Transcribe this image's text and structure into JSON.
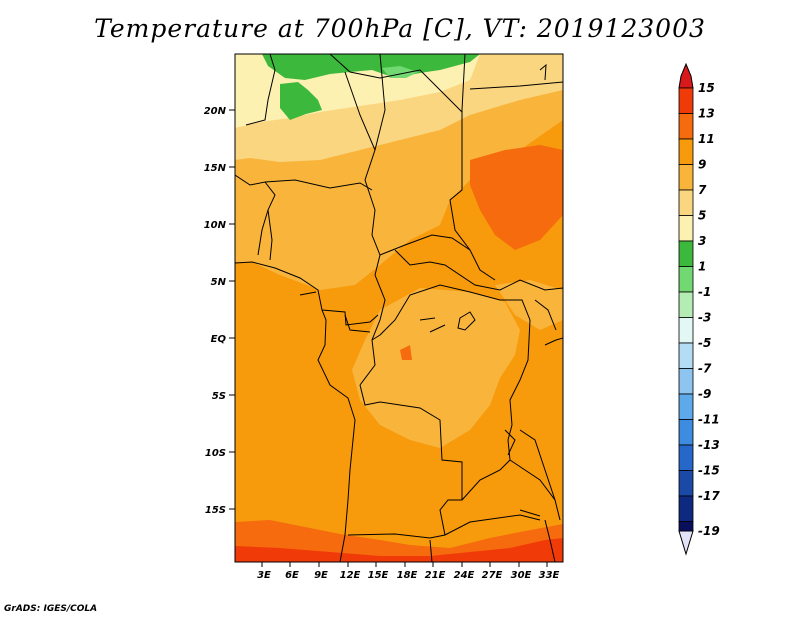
{
  "title": "Temperature at 700hPa [C], VT: 2019123003",
  "credit": "GrADS: IGES/COLA",
  "map": {
    "lat_labels": [
      "20N",
      "15N",
      "10N",
      "5N",
      "EQ",
      "5S",
      "10S",
      "15S"
    ],
    "lon_labels": [
      "3E",
      "6E",
      "9E",
      "12E",
      "15E",
      "18E",
      "21E",
      "24E",
      "27E",
      "30E",
      "33E"
    ]
  },
  "colorbar": {
    "labels": [
      "15",
      "13",
      "11",
      "9",
      "7",
      "5",
      "3",
      "1",
      "-1",
      "-3",
      "-5",
      "-7",
      "-9",
      "-11",
      "-13",
      "-15",
      "-17",
      "-19"
    ],
    "colors": {
      "above_15": "#d7191c",
      "13_15": "#f03b08",
      "11_13": "#f56b0e",
      "9_11": "#f79a0c",
      "7_9": "#f9b43c",
      "5_7": "#fbd680",
      "3_5": "#fdf1b2",
      "1_3": "#3cb93c",
      "-1_1": "#72d972",
      "-3_-1": "#b4ecb4",
      "-5_-3": "#e3f8f5",
      "-7_-5": "#b4dcf5",
      "-9_-7": "#8ec4f0",
      "-11_-9": "#5ea9ea",
      "-13_-11": "#3d8cdf",
      "-15_-13": "#2668c9",
      "-17_-15": "#1a49a6",
      "-19_-17": "#0e2a80",
      "below_-19": "#0a0f5c"
    }
  }
}
